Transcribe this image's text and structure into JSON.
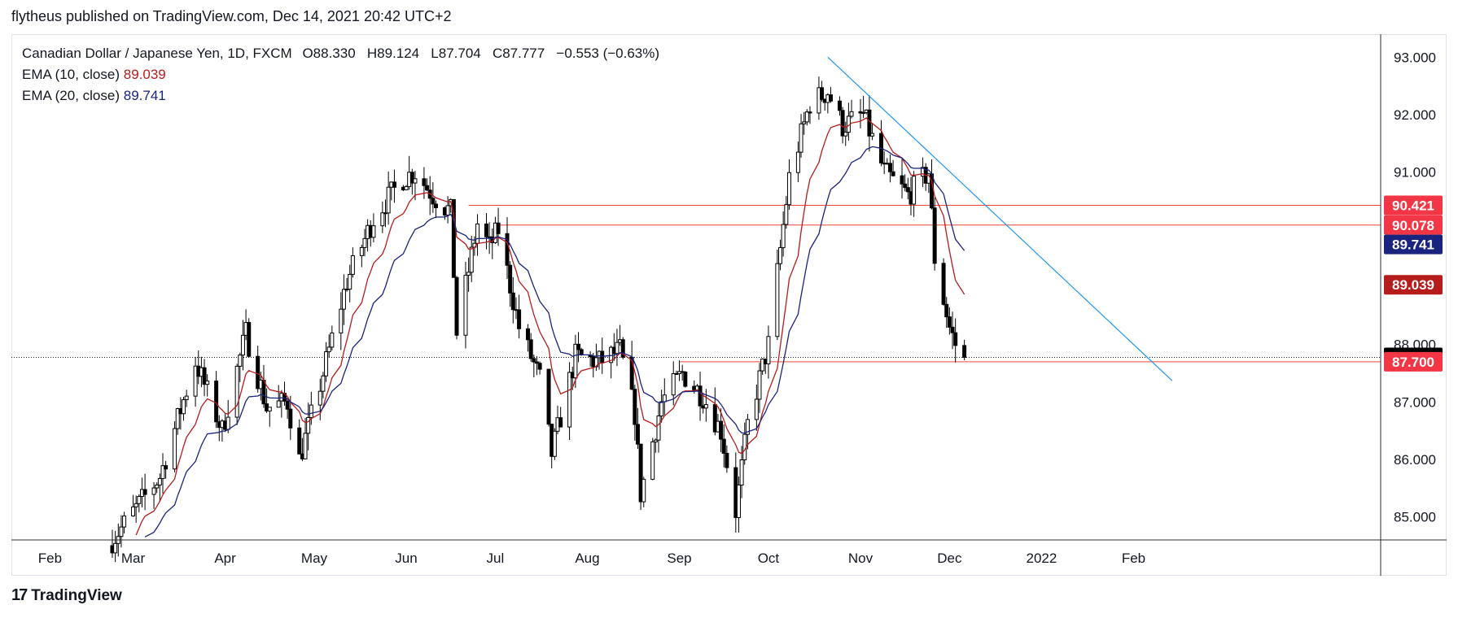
{
  "header": {
    "caption": "flytheus published on TradingView.com, Dec 14, 2021 20:42 UTC+2"
  },
  "legend": {
    "symbol": "Canadian Dollar / Japanese Yen, 1D, FXCM",
    "open_label": "O",
    "open": "88.330",
    "high_label": "H",
    "high": "89.124",
    "low_label": "L",
    "low": "87.704",
    "close_label": "C",
    "close": "87.777",
    "change": "−0.553 (−0.63%)",
    "ema10_label": "EMA (10, close)",
    "ema10_value": "89.039",
    "ema20_label": "EMA (20, close)",
    "ema20_value": "89.741"
  },
  "footer": {
    "logo_text": "TradingView"
  },
  "colors": {
    "ema10": "#b71c1c",
    "ema20": "#1a237e",
    "trendline": "#2196f3",
    "level_line": "#f44336",
    "last_price_badge": "#000000",
    "level_badge": "#f23645",
    "ema10_badge": "#b71c1c",
    "ema20_badge": "#1a237e"
  },
  "chart_data": {
    "type": "candlestick",
    "title": "",
    "y_axis_ticks": [
      "93.000",
      "92.000",
      "91.000",
      "88.000",
      "87.000",
      "86.000",
      "85.000"
    ],
    "y_axis_tick_values": [
      93,
      92,
      91,
      88,
      87,
      86,
      85
    ],
    "x_axis_labels": [
      "Feb",
      "Mar",
      "Apr",
      "May",
      "Jun",
      "Jul",
      "Aug",
      "Sep",
      "Oct",
      "Nov",
      "Dec",
      "2022",
      "Feb"
    ],
    "x_axis_dates": [
      "2021-02-01",
      "2021-03-01",
      "2021-04-01",
      "2021-05-01",
      "2021-06-01",
      "2021-07-01",
      "2021-08-01",
      "2021-09-01",
      "2021-10-01",
      "2021-11-01",
      "2021-12-01",
      "2022-01-01",
      "2022-02-01"
    ],
    "ylim": [
      84.6,
      93.4
    ],
    "price_badges": [
      {
        "label": "90.421",
        "value": 90.421,
        "kind": "level"
      },
      {
        "label": "90.078",
        "value": 90.078,
        "kind": "level"
      },
      {
        "label": "89.741",
        "value": 89.741,
        "kind": "ema20"
      },
      {
        "label": "89.039",
        "value": 89.039,
        "kind": "ema10"
      },
      {
        "label": "87.777",
        "value": 87.777,
        "kind": "last"
      },
      {
        "label": "87.700",
        "value": 87.7,
        "kind": "level"
      }
    ],
    "horizontal_levels": [
      {
        "value": 90.421,
        "start": "2021-06-22"
      },
      {
        "value": 90.078,
        "start": "2021-07-01"
      },
      {
        "value": 87.7,
        "start": "2021-09-01"
      }
    ],
    "last_price": 87.777,
    "trendline": {
      "start": {
        "date": "2021-10-21",
        "value": 93.0
      },
      "end": {
        "date": "2022-02-14",
        "value": 87.37
      }
    },
    "anchors": [
      [
        "2021-02-22",
        84.6
      ],
      [
        "2021-03-10",
        85.7
      ],
      [
        "2021-03-22",
        87.7
      ],
      [
        "2021-03-31",
        86.5
      ],
      [
        "2021-04-08",
        88.2
      ],
      [
        "2021-04-15",
        86.9
      ],
      [
        "2021-04-22",
        87.0
      ],
      [
        "2021-04-26",
        86.0
      ],
      [
        "2021-05-03",
        87.3
      ],
      [
        "2021-05-12",
        89.1
      ],
      [
        "2021-05-21",
        90.2
      ],
      [
        "2021-05-31",
        90.9
      ],
      [
        "2021-06-04",
        91.0
      ],
      [
        "2021-06-10",
        90.6
      ],
      [
        "2021-06-16",
        90.3
      ],
      [
        "2021-06-18",
        88.2
      ],
      [
        "2021-06-25",
        90.1
      ],
      [
        "2021-06-29",
        89.7
      ],
      [
        "2021-07-02",
        90.0
      ],
      [
        "2021-07-09",
        88.3
      ],
      [
        "2021-07-16",
        87.4
      ],
      [
        "2021-07-20",
        86.1
      ],
      [
        "2021-07-28",
        87.8
      ],
      [
        "2021-08-05",
        87.7
      ],
      [
        "2021-08-12",
        87.9
      ],
      [
        "2021-08-17",
        86.8
      ],
      [
        "2021-08-19",
        85.4
      ],
      [
        "2021-08-26",
        87.0
      ],
      [
        "2021-09-02",
        87.5
      ],
      [
        "2021-09-09",
        87.1
      ],
      [
        "2021-09-15",
        86.5
      ],
      [
        "2021-09-20",
        85.1
      ],
      [
        "2021-09-24",
        86.6
      ],
      [
        "2021-10-01",
        88.0
      ],
      [
        "2021-10-08",
        90.9
      ],
      [
        "2021-10-15",
        92.2
      ],
      [
        "2021-10-21",
        92.4
      ],
      [
        "2021-10-26",
        91.8
      ],
      [
        "2021-11-02",
        92.0
      ],
      [
        "2021-11-09",
        91.0
      ],
      [
        "2021-11-17",
        90.6
      ],
      [
        "2021-11-24",
        91.0
      ],
      [
        "2021-11-26",
        89.5
      ],
      [
        "2021-12-01",
        88.3
      ],
      [
        "2021-12-03",
        88.0
      ],
      [
        "2021-12-06",
        87.777
      ]
    ]
  }
}
